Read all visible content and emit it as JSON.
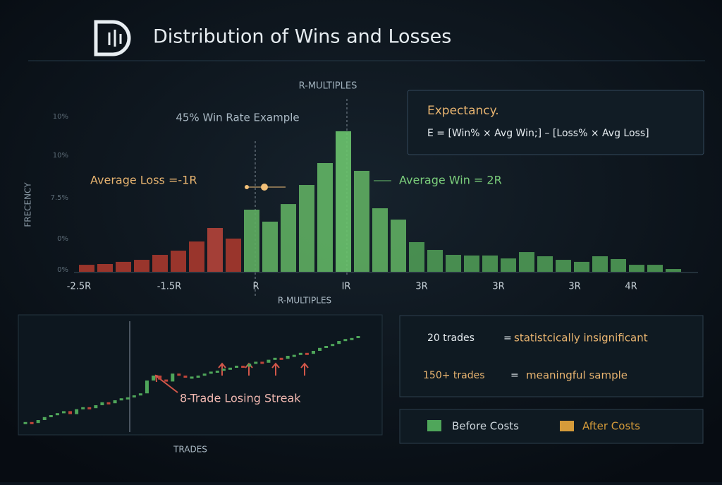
{
  "header": {
    "title": "Distribution of Wins and Losses"
  },
  "chart_data": [
    {
      "type": "bar",
      "title": "R-MULTIPLES",
      "subtitle": "45% Win Rate Example",
      "x_label": "R-MULTIPLES",
      "y_label": "FRECENCY",
      "xtick_labels": [
        "-2.5R",
        "-1.5R",
        "R",
        "IR",
        "3R",
        "3R",
        "3R",
        "4R"
      ],
      "ytick_labels": [
        "10%",
        "10%",
        "7.5%",
        "0%",
        "0%"
      ],
      "ylim": [
        0,
        100
      ],
      "values": [
        4.5,
        5,
        6.4,
        7.7,
        10.9,
        13.6,
        19.5,
        28.2,
        21.4,
        40,
        32.3,
        43.6,
        55.9,
        70,
        90.5,
        65,
        40.9,
        33.6,
        19.1,
        14.1,
        10.9,
        10.5,
        10.5,
        8.6,
        12.7,
        10,
        7.7,
        6.4,
        10,
        8.2,
        4.5,
        4.5,
        1.8
      ],
      "colors": [
        "#a8382e",
        "#a8382e",
        "#a8382e",
        "#a8382e",
        "#a8382e",
        "#a8382e",
        "#a8382e",
        "#b5443a",
        "#a8382e",
        "#5fae62",
        "#5fae62",
        "#5fae62",
        "#5fae62",
        "#62b565",
        "#6cc46e",
        "#5fae62",
        "#5fae62",
        "#5fae62",
        "#4f9a55",
        "#4f9a55",
        "#4f9a55",
        "#4f9a55",
        "#4f9a55",
        "#4f9a55",
        "#4f9a55",
        "#4f9a55",
        "#4f9a55",
        "#4f9a55",
        "#4f9a55",
        "#4f9a55",
        "#4f9a55",
        "#4f9a55",
        "#4f9a55"
      ],
      "annotations": [
        "Average Loss =-1R",
        "Average Win = 2R"
      ]
    },
    {
      "type": "candle",
      "x_label": "TRADES",
      "annotation": "8-Trade Losing Streak",
      "ylim": [
        0,
        100
      ],
      "up_color": "#4fa65a",
      "down_color": "#c0453a",
      "values": [
        3,
        2,
        5,
        8,
        10,
        12,
        14,
        11,
        16,
        18,
        17,
        20,
        23,
        22,
        25,
        27,
        28,
        30,
        32,
        45,
        50,
        46,
        44,
        52,
        50,
        48,
        49,
        50,
        52,
        54,
        55,
        57,
        58,
        60,
        59,
        62,
        64,
        63,
        66,
        68,
        67,
        70,
        71,
        73,
        72,
        75,
        78,
        80,
        82,
        85,
        87,
        88,
        90
      ]
    }
  ],
  "expectancy": {
    "title": "Expectancy.",
    "formula": "E = [Win% × Avg Win;] – [Loss% × Avg Loss]"
  },
  "samples": [
    {
      "count": "20 trades",
      "eq": "=",
      "verdict": "statistcically insignificant"
    },
    {
      "count": "150+ trades",
      "eq": "=",
      "verdict": "meaningful sample"
    }
  ],
  "legend": [
    "Before Costs",
    "After Costs"
  ]
}
